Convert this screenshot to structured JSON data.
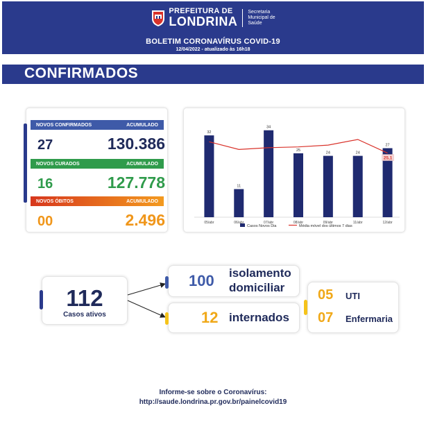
{
  "header": {
    "logo_prefix": "PREFEITURA DE",
    "logo_city": "LONDRINA",
    "logo_secretariat": [
      "Secretaria",
      "Municipal de",
      "Saúde"
    ],
    "title": "BOLETIM CORONAVÍRUS COVID-19",
    "date": "12/04/2022 - atualizado às 16h18"
  },
  "section_title": "CONFIRMADOS",
  "stats": {
    "confirmed": {
      "label": "NOVOS CONFIRMADOS",
      "accum_label": "ACUMULADO",
      "daily": "27",
      "total": "130.386"
    },
    "recovered": {
      "label": "NOVOS CURADOS",
      "accum_label": "ACUMULADO",
      "daily": "16",
      "total": "127.778"
    },
    "deaths": {
      "label": "NOVOS ÓBITOS",
      "accum_label": "ACUMULADO",
      "daily": "00",
      "total": "2.496"
    }
  },
  "colors": {
    "navy": "#2a3a8c",
    "bar": "#1f2a70",
    "line": "#d9322a",
    "green": "#2f9b4b",
    "orange": "#f0961a",
    "yellow": "#f5c31a"
  },
  "chart_data": {
    "type": "bar",
    "categories": [
      "05/abr",
      "06/abr",
      "07/abr",
      "08/abr",
      "09/abr",
      "11/abr",
      "12/abr"
    ],
    "series": [
      {
        "name": "Casos Novos Dia",
        "type": "bar",
        "values": [
          32,
          11,
          34,
          25,
          24,
          24,
          27
        ]
      },
      {
        "name": "Média móvel dos últimos 7 dias",
        "type": "line",
        "values": [
          29.5,
          26.5,
          27.2,
          27.5,
          28.2,
          30.4,
          25.1
        ]
      }
    ],
    "data_labels": [
      "32",
      "11",
      "34",
      "25",
      "24",
      "24",
      "27"
    ],
    "line_last_label": "25,1",
    "ylim": [
      0,
      38
    ],
    "grid": false,
    "legend_position": "bottom"
  },
  "active_cases": {
    "number": "112",
    "label": "Casos ativos"
  },
  "home_isolation": {
    "number": "100",
    "label_line1": "isolamento",
    "label_line2": "domiciliar"
  },
  "hospitalized": {
    "number": "12",
    "label": "internados"
  },
  "icu": {
    "number": "05",
    "label": "UTI"
  },
  "ward": {
    "number": "07",
    "label": "Enfermaria"
  },
  "footer": {
    "line1": "Informe-se sobre o Coronavírus:",
    "line2": "http://saude.londrina.pr.gov.br/painelcovid19"
  }
}
